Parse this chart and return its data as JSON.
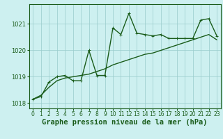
{
  "title": "Graphe pression niveau de la mer (hPa)",
  "bg_color": "#cdf0f0",
  "line_color": "#1a5c1a",
  "grid_color": "#99cccc",
  "x_labels": [
    "0",
    "1",
    "2",
    "3",
    "4",
    "5",
    "6",
    "7",
    "8",
    "9",
    "10",
    "11",
    "12",
    "13",
    "14",
    "15",
    "16",
    "17",
    "18",
    "19",
    "20",
    "21",
    "22",
    "23"
  ],
  "x_values": [
    0,
    1,
    2,
    3,
    4,
    5,
    6,
    7,
    8,
    9,
    10,
    11,
    12,
    13,
    14,
    15,
    16,
    17,
    18,
    19,
    20,
    21,
    22,
    23
  ],
  "y_zigzag": [
    1018.15,
    1018.25,
    1018.8,
    1019.0,
    1019.05,
    1018.85,
    1018.85,
    1020.0,
    1019.05,
    1019.05,
    1020.85,
    1020.6,
    1021.4,
    1020.65,
    1020.6,
    1020.55,
    1020.6,
    1020.45,
    1020.45,
    1020.45,
    1020.45,
    1021.15,
    1021.2,
    1020.55
  ],
  "y_smooth": [
    1018.15,
    1018.3,
    1018.6,
    1018.85,
    1018.95,
    1019.0,
    1019.05,
    1019.1,
    1019.2,
    1019.3,
    1019.45,
    1019.55,
    1019.65,
    1019.75,
    1019.85,
    1019.9,
    1020.0,
    1020.1,
    1020.2,
    1020.3,
    1020.4,
    1020.5,
    1020.6,
    1020.4
  ],
  "ylim": [
    1017.8,
    1021.75
  ],
  "yticks": [
    1018,
    1019,
    1020,
    1021
  ],
  "marker_size": 3,
  "linewidth": 1.0,
  "title_fontsize": 7.5,
  "tick_fontsize": 6.0,
  "figwidth": 3.2,
  "figheight": 2.0,
  "dpi": 100
}
